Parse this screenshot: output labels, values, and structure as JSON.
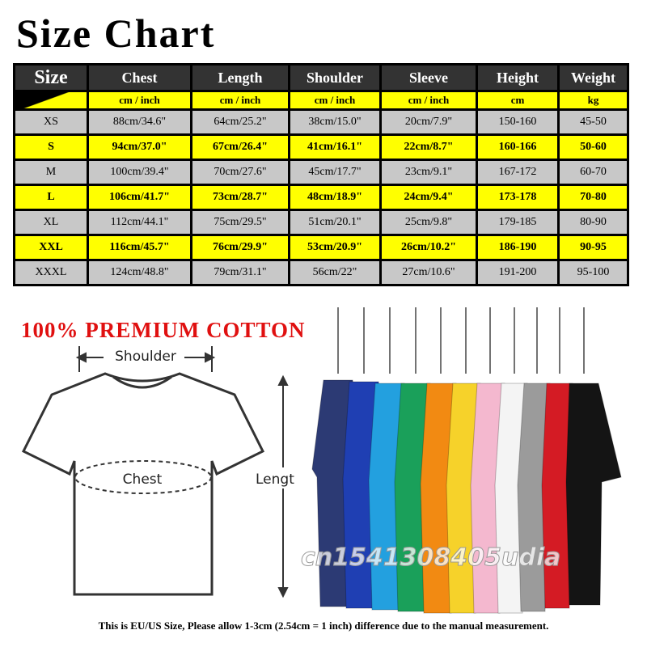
{
  "title": "Size Chart",
  "table": {
    "headers": [
      "Size",
      "Chest",
      "Length",
      "Shoulder",
      "Sleeve",
      "Height",
      "Weight"
    ],
    "units": [
      "cm / inch",
      "cm / inch",
      "cm / inch",
      "cm / inch",
      "cm",
      "kg"
    ],
    "rows": [
      [
        "XS",
        "88cm/34.6\"",
        "64cm/25.2\"",
        "38cm/15.0\"",
        "20cm/7.9\"",
        "150-160",
        "45-50"
      ],
      [
        "S",
        "94cm/37.0\"",
        "67cm/26.4\"",
        "41cm/16.1\"",
        "22cm/8.7\"",
        "160-166",
        "50-60"
      ],
      [
        "M",
        "100cm/39.4\"",
        "70cm/27.6\"",
        "45cm/17.7\"",
        "23cm/9.1\"",
        "167-172",
        "60-70"
      ],
      [
        "L",
        "106cm/41.7\"",
        "73cm/28.7\"",
        "48cm/18.9\"",
        "24cm/9.4\"",
        "173-178",
        "70-80"
      ],
      [
        "XL",
        "112cm/44.1\"",
        "75cm/29.5\"",
        "51cm/20.1\"",
        "25cm/9.8\"",
        "179-185",
        "80-90"
      ],
      [
        "XXL",
        "116cm/45.7\"",
        "76cm/29.9\"",
        "53cm/20.9\"",
        "26cm/10.2\"",
        "186-190",
        "90-95"
      ],
      [
        "XXXL",
        "124cm/48.8\"",
        "79cm/31.1\"",
        "56cm/22\"",
        "27cm/10.6\"",
        "191-200",
        "95-100"
      ]
    ]
  },
  "banner": "100% PREMIUM COTTON",
  "diagram": {
    "shoulder": "Shoulder",
    "chest": "Chest",
    "length": "Lengt"
  },
  "watermark": "cn1541308405udia",
  "footer": "This is EU/US Size, Please allow 1-3cm (2.54cm = 1 inch) difference due to the manual measurement."
}
